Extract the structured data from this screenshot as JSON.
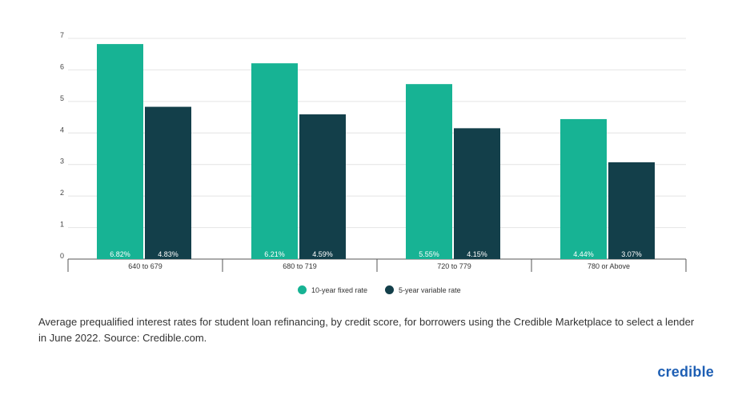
{
  "chart_data": {
    "type": "bar",
    "categories": [
      "640 to 679",
      "680 to 719",
      "720 to 779",
      "780 or Above"
    ],
    "series": [
      {
        "name": "10-year fixed rate",
        "values": [
          6.82,
          6.21,
          5.55,
          4.44
        ],
        "labels": [
          "6.82%",
          "6.21%",
          "5.55%",
          "4.44%"
        ],
        "color": "#17b394"
      },
      {
        "name": "5-year variable rate",
        "values": [
          4.83,
          4.59,
          4.15,
          3.07
        ],
        "labels": [
          "4.83%",
          "4.59%",
          "4.15%",
          "3.07%"
        ],
        "color": "#133f4a"
      }
    ],
    "yticks": [
      "0",
      "1",
      "2",
      "3",
      "4",
      "5",
      "6",
      "7"
    ],
    "ylim": [
      0,
      7
    ],
    "grid": true,
    "legend_position": "bottom-center"
  },
  "caption": "Average prequalified interest rates for student loan refinancing, by credit score, for borrowers using the Credible Marketplace to select a lender in June 2022. Source: Credible.com.",
  "brand": "credible"
}
